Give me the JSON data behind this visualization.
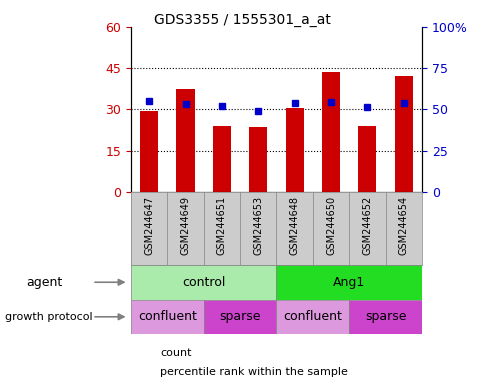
{
  "title": "GDS3355 / 1555301_a_at",
  "samples": [
    "GSM244647",
    "GSM244649",
    "GSM244651",
    "GSM244653",
    "GSM244648",
    "GSM244650",
    "GSM244652",
    "GSM244654"
  ],
  "counts": [
    29.5,
    37.5,
    24.0,
    23.5,
    30.5,
    43.5,
    24.0,
    42.0
  ],
  "percentiles": [
    55.0,
    53.0,
    52.0,
    49.0,
    54.0,
    54.5,
    51.5,
    54.0
  ],
  "bar_color": "#CC0000",
  "dot_color": "#0000CC",
  "left_ylim": [
    0,
    60
  ],
  "right_ylim": [
    0,
    100
  ],
  "left_yticks": [
    0,
    15,
    30,
    45,
    60
  ],
  "right_yticks": [
    0,
    25,
    50,
    75,
    100
  ],
  "right_yticklabels": [
    "0",
    "25",
    "50",
    "75",
    "100%"
  ],
  "hlines": [
    15,
    30,
    45
  ],
  "agent_labels": [
    {
      "text": "control",
      "start": 0,
      "end": 4,
      "color": "#AAEAAA"
    },
    {
      "text": "Ang1",
      "start": 4,
      "end": 8,
      "color": "#22DD22"
    }
  ],
  "growth_labels": [
    {
      "text": "confluent",
      "start": 0,
      "end": 2,
      "color": "#DD99DD"
    },
    {
      "text": "sparse",
      "start": 2,
      "end": 4,
      "color": "#CC44CC"
    },
    {
      "text": "confluent",
      "start": 4,
      "end": 6,
      "color": "#DD99DD"
    },
    {
      "text": "sparse",
      "start": 6,
      "end": 8,
      "color": "#CC44CC"
    }
  ],
  "legend_count_color": "#CC0000",
  "legend_dot_color": "#0000CC",
  "tick_label_color_left": "#CC0000",
  "tick_label_color_right": "#0000CC",
  "bg_color": "#FFFFFF",
  "plot_bg_color": "#FFFFFF",
  "label_area_bg": "#CCCCCC",
  "bar_width": 0.5,
  "title_fontsize": 10
}
